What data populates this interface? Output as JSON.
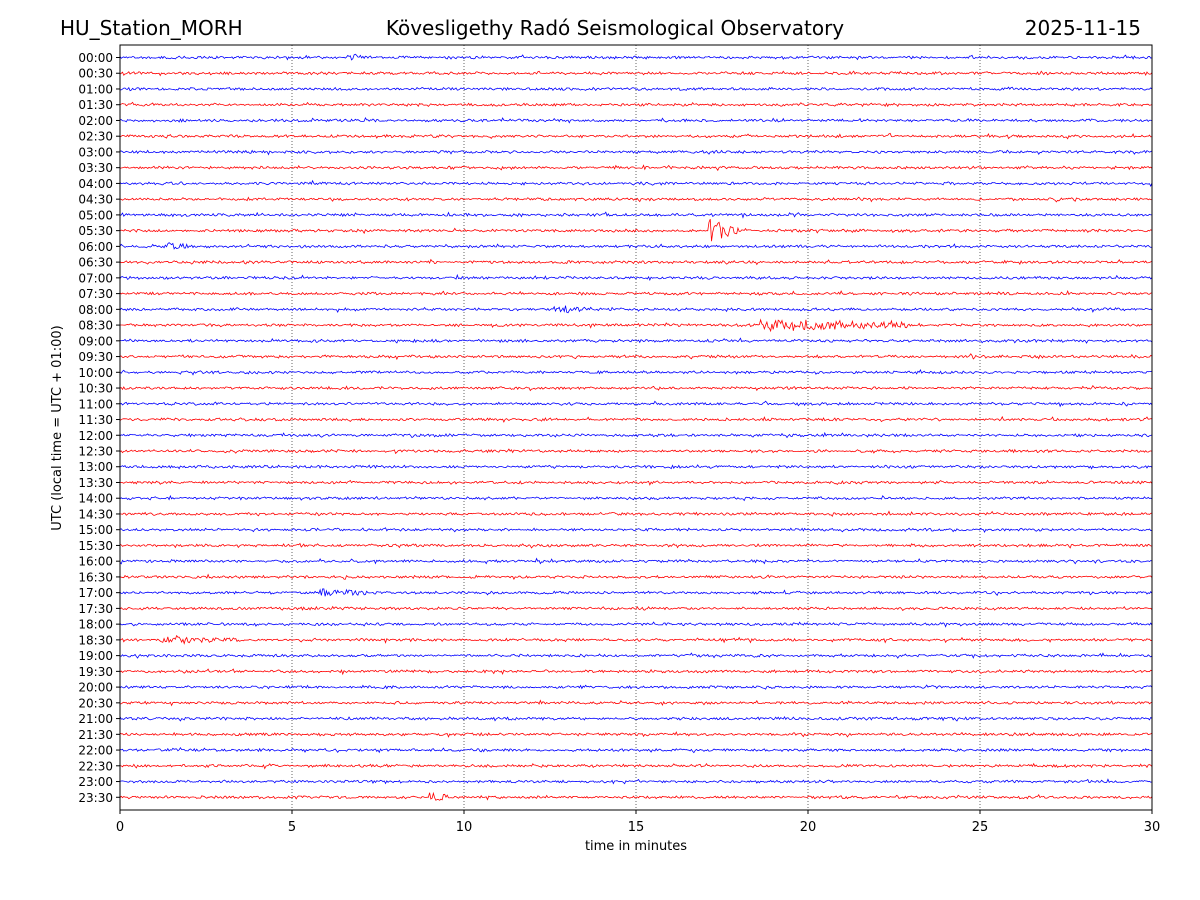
{
  "header": {
    "station": "HU_Station_MORH",
    "title": "Kövesligethy Radó Seismological Observatory",
    "date": "2025-11-15"
  },
  "colors": {
    "even_rows": "#0000ff",
    "odd_rows": "#ff0000",
    "grid": "#000000",
    "background": "#ffffff"
  },
  "chart_data": {
    "type": "line",
    "title": "Kövesligethy Radó Seismological Observatory",
    "xlabel": "time in minutes",
    "ylabel": "UTC (local time = UTC + 01:00)",
    "xlim": [
      0,
      30
    ],
    "x_ticks": [
      0,
      5,
      10,
      15,
      20,
      25,
      30
    ],
    "x_tick_labels": [
      "0",
      "5",
      "10",
      "15",
      "20",
      "25",
      "30"
    ],
    "grid": "vertical dotted",
    "rows": [
      "00:00",
      "00:30",
      "01:00",
      "01:30",
      "02:00",
      "02:30",
      "03:00",
      "03:30",
      "04:00",
      "04:30",
      "05:00",
      "05:30",
      "06:00",
      "06:30",
      "07:00",
      "07:30",
      "08:00",
      "08:30",
      "09:00",
      "09:30",
      "10:00",
      "10:30",
      "11:00",
      "11:30",
      "12:00",
      "12:30",
      "13:00",
      "13:30",
      "14:00",
      "14:30",
      "15:00",
      "15:30",
      "16:00",
      "16:30",
      "17:00",
      "17:30",
      "18:00",
      "18:30",
      "19:00",
      "19:30",
      "20:00",
      "20:30",
      "21:00",
      "21:30",
      "22:00",
      "22:30",
      "23:00",
      "23:30"
    ],
    "row_colors": [
      "blue",
      "red"
    ],
    "events": [
      {
        "row": "00:00",
        "start_min": 6.6,
        "end_min": 7.3,
        "amplitude": 0.16
      },
      {
        "row": "05:30",
        "start_min": 17.1,
        "end_min": 18.0,
        "amplitude": 0.7
      },
      {
        "row": "06:00",
        "start_min": 1.2,
        "end_min": 2.0,
        "amplitude": 0.2
      },
      {
        "row": "08:00",
        "start_min": 12.6,
        "end_min": 13.6,
        "amplitude": 0.22
      },
      {
        "row": "08:30",
        "start_min": 18.6,
        "end_min": 22.9,
        "amplitude": 0.34
      },
      {
        "row": "09:30",
        "start_min": 24.7,
        "end_min": 24.9,
        "amplitude": 0.3
      },
      {
        "row": "17:00",
        "start_min": 5.8,
        "end_min": 7.2,
        "amplitude": 0.18
      },
      {
        "row": "18:30",
        "start_min": 1.2,
        "end_min": 3.5,
        "amplitude": 0.14
      },
      {
        "row": "23:30",
        "start_min": 9.0,
        "end_min": 9.6,
        "amplitude": 0.3
      }
    ]
  }
}
